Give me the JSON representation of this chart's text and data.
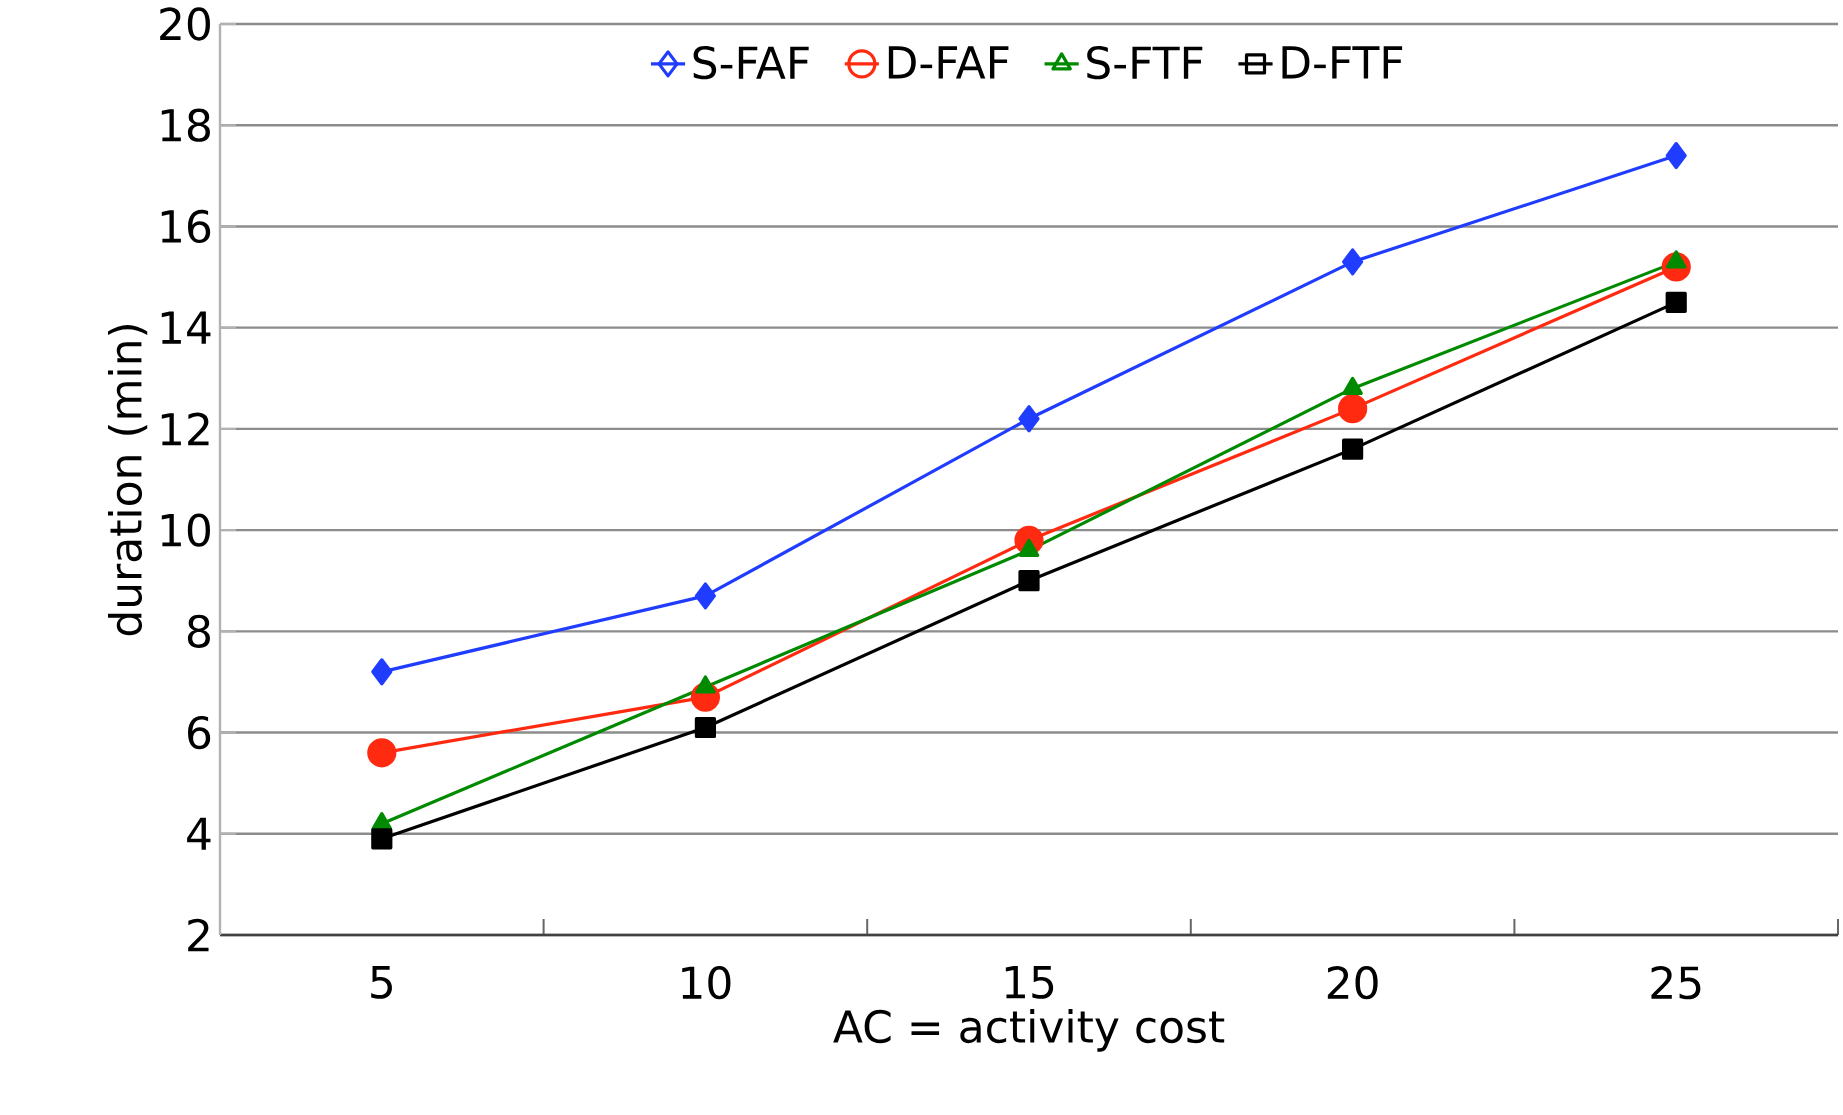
{
  "chart_data": {
    "type": "line",
    "xlabel": "AC = activity cost",
    "ylabel": "duration (min)",
    "categories": [
      "5",
      "10",
      "15",
      "20",
      "25"
    ],
    "ylim": [
      2,
      20
    ],
    "yticks": [
      2,
      4,
      6,
      8,
      10,
      12,
      14,
      16,
      18,
      20
    ],
    "grid": "y",
    "legend": "top",
    "series": [
      {
        "name": "S-FAF",
        "color": "#1f3cff",
        "marker": "diamond",
        "values": [
          7.2,
          8.7,
          12.2,
          15.3,
          17.4
        ]
      },
      {
        "name": "D-FAF",
        "color": "#ff2a10",
        "marker": "circle",
        "values": [
          5.6,
          6.7,
          9.8,
          12.4,
          15.2
        ]
      },
      {
        "name": "S-FTF",
        "color": "#008a00",
        "marker": "triangle",
        "values": [
          4.2,
          6.9,
          9.6,
          12.8,
          15.3
        ]
      },
      {
        "name": "D-FTF",
        "color": "#000000",
        "marker": "square",
        "values": [
          3.9,
          6.1,
          9.0,
          11.6,
          14.5
        ]
      }
    ]
  }
}
